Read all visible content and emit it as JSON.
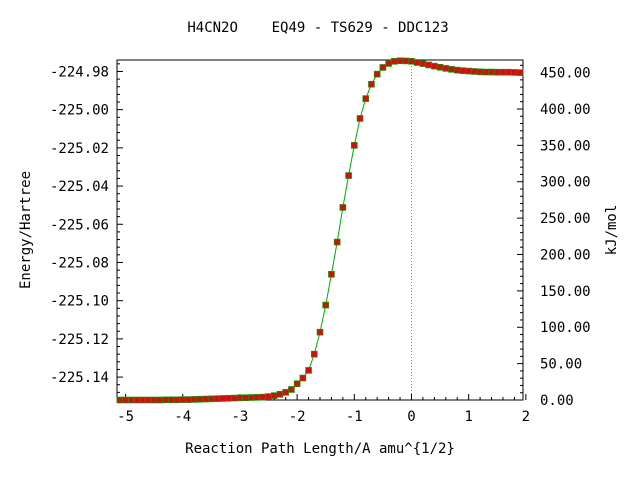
{
  "chart_data": {
    "type": "line",
    "title": "H4CN2O    EQ49 - TS629 - DDC123",
    "xlabel": "Reaction Path Length/A amu^{1/2}",
    "ylabel": "Energy/Hartree",
    "y2label": "kJ/mol",
    "xlim": [
      -5.15,
      1.95
    ],
    "ylim": [
      -225.152,
      -224.974
    ],
    "y2lim": [
      0,
      467.3
    ],
    "x_ticks": [
      -5,
      -4,
      -3,
      -2,
      -1,
      0,
      1,
      2
    ],
    "x_tick_labels": [
      "-5",
      "-4",
      "-3",
      "-2",
      "-1",
      "0",
      "1",
      "2"
    ],
    "y_ticks": [
      -224.98,
      -225.0,
      -225.02,
      -225.04,
      -225.06,
      -225.08,
      -225.1,
      -225.12,
      -225.14
    ],
    "y_tick_labels": [
      "-224.98",
      "-225.00",
      "-225.02",
      "-225.04",
      "-225.06",
      "-225.08",
      "-225.10",
      "-225.12",
      "-225.14"
    ],
    "y2_ticks": [
      0,
      50,
      100,
      150,
      200,
      250,
      300,
      350,
      400,
      450
    ],
    "y2_tick_labels": [
      "0.00",
      "50.00",
      "100.00",
      "150.00",
      "200.00",
      "250.00",
      "300.00",
      "350.00",
      "400.00",
      "450.00"
    ],
    "ts_marker_x": 0,
    "grid": false,
    "line_color": "#00aa00",
    "marker_color": "#cc1111",
    "series": [
      {
        "x": [
          -5.1,
          -5.0,
          -4.9,
          -4.8,
          -4.7,
          -4.6,
          -4.5,
          -4.4,
          -4.3,
          -4.2,
          -4.1,
          -4.0,
          -3.9,
          -3.8,
          -3.7,
          -3.6,
          -3.5,
          -3.4,
          -3.3,
          -3.2,
          -3.1,
          -3.0,
          -2.9,
          -2.8,
          -2.7,
          -2.6,
          -2.5,
          -2.4,
          -2.3,
          -2.2,
          -2.1,
          -2.0,
          -1.9,
          -1.8,
          -1.7,
          -1.6,
          -1.5,
          -1.4,
          -1.3,
          -1.2,
          -1.1,
          -1.0,
          -0.9,
          -0.8,
          -0.7,
          -0.6,
          -0.5,
          -0.4,
          -0.3,
          -0.2,
          -0.1,
          0.0,
          0.1,
          0.2,
          0.3,
          0.4,
          0.5,
          0.6,
          0.7,
          0.8,
          0.9,
          1.0,
          1.1,
          1.2,
          1.3,
          1.4,
          1.5,
          1.6,
          1.7,
          1.8,
          1.9
        ],
        "y": [
          -225.152,
          -225.152,
          -225.152,
          -225.152,
          -225.152,
          -225.152,
          -225.152,
          -225.152,
          -225.1519,
          -225.1519,
          -225.1519,
          -225.1518,
          -225.1518,
          -225.1517,
          -225.1516,
          -225.1515,
          -225.1514,
          -225.1513,
          -225.1512,
          -225.1511,
          -225.151,
          -225.1509,
          -225.1508,
          -225.1507,
          -225.1506,
          -225.1505,
          -225.1502,
          -225.1497,
          -225.149,
          -225.148,
          -225.1465,
          -225.1435,
          -225.1405,
          -225.1365,
          -225.128,
          -225.1165,
          -225.1023,
          -225.0862,
          -225.0693,
          -225.0512,
          -225.0345,
          -225.0187,
          -225.0046,
          -224.9942,
          -224.9867,
          -224.9814,
          -224.9779,
          -224.9758,
          -224.9747,
          -224.9744,
          -224.9745,
          -224.9747,
          -224.9753,
          -224.9759,
          -224.9766,
          -224.9772,
          -224.9778,
          -224.9784,
          -224.9789,
          -224.9793,
          -224.9796,
          -224.9798,
          -224.98,
          -224.9802,
          -224.9803,
          -224.9803,
          -224.9804,
          -224.9804,
          -224.9804,
          -224.9805,
          -224.9806
        ]
      }
    ]
  }
}
